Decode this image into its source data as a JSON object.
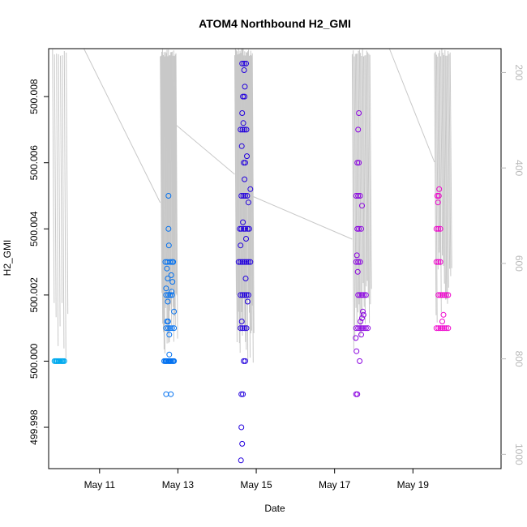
{
  "chart_data": {
    "type": "scatter",
    "title": "ATOM4 Northbound H2_GMI",
    "xlabel": "Date",
    "ylabel": "H2_GMI",
    "x_ticks": [
      "May 11",
      "May 13",
      "May 15",
      "May 17",
      "May 19"
    ],
    "x_tick_values": [
      11,
      13,
      15,
      17,
      19
    ],
    "xlim": [
      9.7,
      21.25
    ],
    "y_ticks": [
      "499.998",
      "500.000",
      "500.002",
      "500.004",
      "500.006",
      "500.008"
    ],
    "y_tick_values": [
      499.998,
      500.0,
      500.002,
      500.004,
      500.006,
      500.008
    ],
    "ylim": [
      499.99675,
      500.00945
    ],
    "secondary_y_ticks": [
      "200",
      "400",
      "600",
      "800",
      "1000"
    ],
    "secondary_y_tick_values": [
      200,
      400,
      600,
      800,
      1000
    ],
    "secondary_ylim": [
      1030,
      150
    ],
    "secondary_y_inverted": true,
    "colors": {
      "trace": "#c8c8c8",
      "flight_1": "#00aaee",
      "flight_2": "#0070f0",
      "flight_3": "#2200dd",
      "flight_4": "#8a00e0",
      "flight_5": "#ee00cc"
    },
    "series": [
      {
        "color_key": "flight_1",
        "x": [
          9.85,
          9.9,
          9.95,
          10.0,
          10.05,
          10.1,
          9.88,
          9.92,
          9.97,
          10.03,
          10.07
        ],
        "y": [
          500.0,
          500.0,
          500.0,
          500.0,
          500.0,
          500.0,
          500.0,
          500.0,
          500.0,
          500.0,
          500.0
        ]
      },
      {
        "color_key": "flight_2",
        "x": [
          12.65,
          12.7,
          12.75,
          12.8,
          12.85,
          12.9,
          12.68,
          12.72,
          12.78,
          12.82,
          12.88,
          12.7,
          12.75,
          12.8,
          12.85,
          12.9,
          12.7,
          12.75,
          12.8,
          12.85,
          12.68,
          12.73,
          12.8,
          12.85,
          12.88,
          12.72,
          12.75,
          12.7,
          12.82,
          12.78,
          12.74,
          12.77,
          12.76,
          12.72,
          12.7,
          12.74,
          12.83,
          12.86,
          12.9,
          12.78,
          12.76,
          12.84
        ],
        "y": [
          500.0,
          500.0,
          500.0,
          500.0,
          500.0,
          500.0,
          500.0,
          500.0,
          500.0,
          500.0,
          500.0,
          500.001,
          500.001,
          500.001,
          500.001,
          500.001,
          500.002,
          500.002,
          500.002,
          500.002,
          500.003,
          500.003,
          500.003,
          500.003,
          500.003,
          500.0012,
          500.0012,
          499.999,
          499.999,
          500.0002,
          500.0025,
          500.0035,
          500.005,
          500.0028,
          500.0022,
          500.0018,
          500.0026,
          500.0024,
          500.0015,
          500.0008,
          500.004,
          500.0021
        ]
      },
      {
        "color_key": "flight_3",
        "x": [
          14.55,
          14.6,
          14.65,
          14.7,
          14.75,
          14.8,
          14.85,
          14.58,
          14.62,
          14.68,
          14.72,
          14.78,
          14.82,
          14.6,
          14.65,
          14.7,
          14.75,
          14.8,
          14.62,
          14.67,
          14.72,
          14.77,
          14.6,
          14.65,
          14.7,
          14.75,
          14.68,
          14.72,
          14.66,
          14.7,
          14.64,
          14.69,
          14.74,
          14.6,
          14.65,
          14.7,
          14.75,
          14.62,
          14.66,
          14.68,
          14.72,
          14.64,
          14.76,
          14.8,
          14.85,
          14.6,
          14.66,
          14.74,
          14.7,
          14.63,
          14.67,
          14.71,
          14.69,
          14.73,
          14.78,
          14.62,
          14.64,
          14.61,
          14.63
        ],
        "y": [
          500.003,
          500.003,
          500.003,
          500.003,
          500.003,
          500.003,
          500.003,
          500.004,
          500.004,
          500.004,
          500.004,
          500.004,
          500.004,
          500.002,
          500.002,
          500.002,
          500.002,
          500.002,
          500.005,
          500.005,
          500.005,
          500.005,
          500.007,
          500.007,
          500.007,
          500.007,
          500.006,
          500.006,
          500.008,
          500.008,
          500.009,
          500.009,
          500.009,
          500.001,
          500.001,
          500.001,
          500.001,
          499.999,
          499.999,
          500.0,
          500.0,
          500.0075,
          500.0062,
          500.0048,
          500.0052,
          500.0035,
          500.0042,
          500.0037,
          500.0055,
          500.0065,
          500.0072,
          500.0083,
          500.0088,
          500.0025,
          500.0018,
          499.998,
          499.9975,
          499.997,
          500.0012
        ]
      },
      {
        "color_key": "flight_4",
        "x": [
          17.55,
          17.6,
          17.65,
          17.7,
          17.75,
          17.8,
          17.85,
          17.6,
          17.65,
          17.7,
          17.75,
          17.8,
          17.55,
          17.6,
          17.65,
          17.58,
          17.62,
          17.68,
          17.55,
          17.6,
          17.65,
          17.58,
          17.62,
          17.6,
          17.62,
          17.55,
          17.58,
          17.72,
          17.74,
          17.66,
          17.7,
          17.54,
          17.56,
          17.64,
          17.57,
          17.59,
          17.68,
          17.7
        ],
        "y": [
          500.001,
          500.001,
          500.001,
          500.001,
          500.001,
          500.001,
          500.001,
          500.002,
          500.002,
          500.002,
          500.002,
          500.002,
          500.003,
          500.003,
          500.003,
          500.004,
          500.004,
          500.004,
          500.005,
          500.005,
          500.005,
          500.006,
          500.006,
          500.007,
          500.0075,
          499.999,
          499.999,
          500.0015,
          500.0014,
          500.0012,
          500.0013,
          500.0007,
          500.0003,
          500.0,
          500.0032,
          500.0027,
          500.0008,
          500.0047
        ]
      },
      {
        "color_key": "flight_5",
        "x": [
          19.6,
          19.65,
          19.7,
          19.75,
          19.8,
          19.85,
          19.9,
          19.65,
          19.7,
          19.75,
          19.8,
          19.85,
          19.9,
          19.6,
          19.65,
          19.7,
          19.6,
          19.65,
          19.7,
          19.62,
          19.66,
          19.75,
          19.78,
          19.64,
          19.67
        ],
        "y": [
          500.001,
          500.001,
          500.001,
          500.001,
          500.001,
          500.001,
          500.001,
          500.002,
          500.002,
          500.002,
          500.002,
          500.002,
          500.002,
          500.003,
          500.003,
          500.003,
          500.004,
          500.004,
          500.004,
          500.005,
          500.005,
          500.0012,
          500.0014,
          500.0048,
          500.0052
        ]
      }
    ]
  }
}
